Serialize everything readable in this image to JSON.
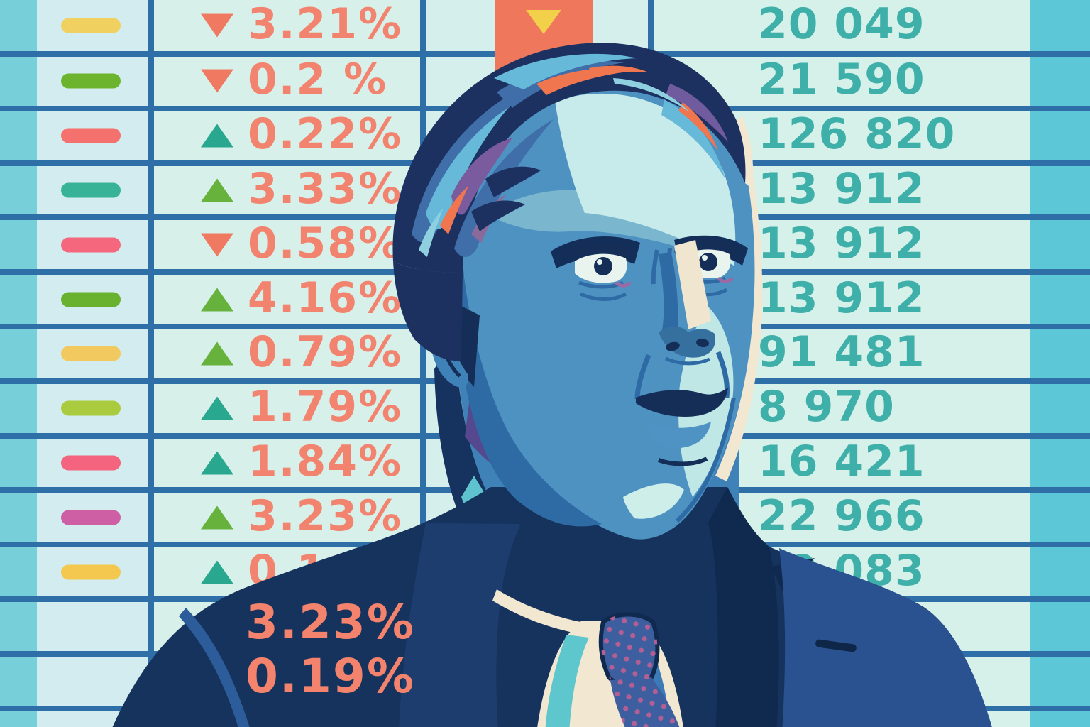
{
  "illustration": {
    "description": "Stylized illustration of a stern businessman in a navy suit in front of a stock market quote board",
    "overlay_percents": {
      "line1": "3.23%",
      "line2": "0.19%"
    }
  },
  "board": {
    "highlight_cell": {
      "arrow": "down",
      "cell_color": "#ef775c",
      "arrow_color": "#f2d04a"
    },
    "rows": [
      {
        "dash": "#f0d05e",
        "trend": "down",
        "trend_color": "#ef7a61",
        "pct": "3.21%",
        "val": "20 049"
      },
      {
        "dash": "#6db42e",
        "trend": "down",
        "trend_color": "#ef7a61",
        "pct": "0.2 %",
        "val": "21 590"
      },
      {
        "dash": "#f4716e",
        "trend": "up",
        "trend_color": "#2aa88f",
        "pct": "0.22%",
        "val": "126 820"
      },
      {
        "dash": "#39b397",
        "trend": "up",
        "trend_color": "#66b23d",
        "pct": "3.33%",
        "val": "13 912"
      },
      {
        "dash": "#f4677c",
        "trend": "down",
        "trend_color": "#ef7a61",
        "pct": "0.58%",
        "val": "13 912"
      },
      {
        "dash": "#68b22f",
        "trend": "up",
        "trend_color": "#66b23d",
        "pct": "4.16%",
        "val": "13 912"
      },
      {
        "dash": "#f2c95e",
        "trend": "up",
        "trend_color": "#66b23d",
        "pct": "0.79%",
        "val": "91 481"
      },
      {
        "dash": "#aacb3e",
        "trend": "up",
        "trend_color": "#2aa88f",
        "pct": "1.79%",
        "val": "8 970"
      },
      {
        "dash": "#f4647e",
        "trend": "up",
        "trend_color": "#2aa88f",
        "pct": "1.84%",
        "val": "16 421"
      },
      {
        "dash": "#ce5fa5",
        "trend": "up",
        "trend_color": "#66b23d",
        "pct": "3.23%",
        "val": "22 966"
      },
      {
        "dash": "#f4c84e",
        "trend": "up",
        "trend_color": "#2aa88f",
        "pct": "0.1",
        "val": "19 083"
      },
      {
        "dash": null,
        "trend": null,
        "trend_color": null,
        "pct": "",
        "val": ""
      },
      {
        "dash": null,
        "trend": null,
        "trend_color": null,
        "pct": "",
        "val": ""
      }
    ],
    "colors": {
      "background": "#d6efe9",
      "left_strip": "#77cfda",
      "right_strip": "#5cc8d7",
      "grid_line": "#2f6fa8",
      "percent_text": "#f2836e",
      "value_text": "#3fb0a9"
    }
  }
}
